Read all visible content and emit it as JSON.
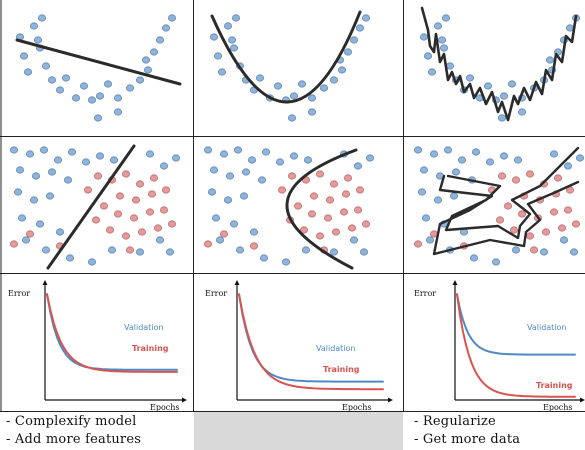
{
  "colors": {
    "fit_line": "#2b2b2b",
    "point_blue_fill": "#8fb3d9",
    "point_blue_edge": "#5c86b5",
    "point_red_fill": "#e39a9a",
    "point_red_edge": "#c06a6a",
    "validation_curve": "#4f89c5",
    "training_curve": "#d9534f",
    "grid_line": "#222222",
    "caption_highlight": "#d9d9d9"
  },
  "curves": {
    "axis_y_label": "Error",
    "axis_x_label": "Epochs",
    "validation_label": "Validation",
    "training_label": "Training",
    "panels": [
      {
        "regime": "underfit",
        "validation_plateau": 0.28,
        "training_plateau": 0.26
      },
      {
        "regime": "good-fit",
        "validation_plateau": 0.17,
        "training_plateau": 0.1
      },
      {
        "regime": "overfit",
        "validation_plateau": 0.42,
        "training_plateau": 0.03
      }
    ]
  },
  "captions": {
    "left": [
      "- Complexify model",
      "- Add more features"
    ],
    "middle": [],
    "right": [
      "- Regularize",
      "- Get more data"
    ]
  }
}
